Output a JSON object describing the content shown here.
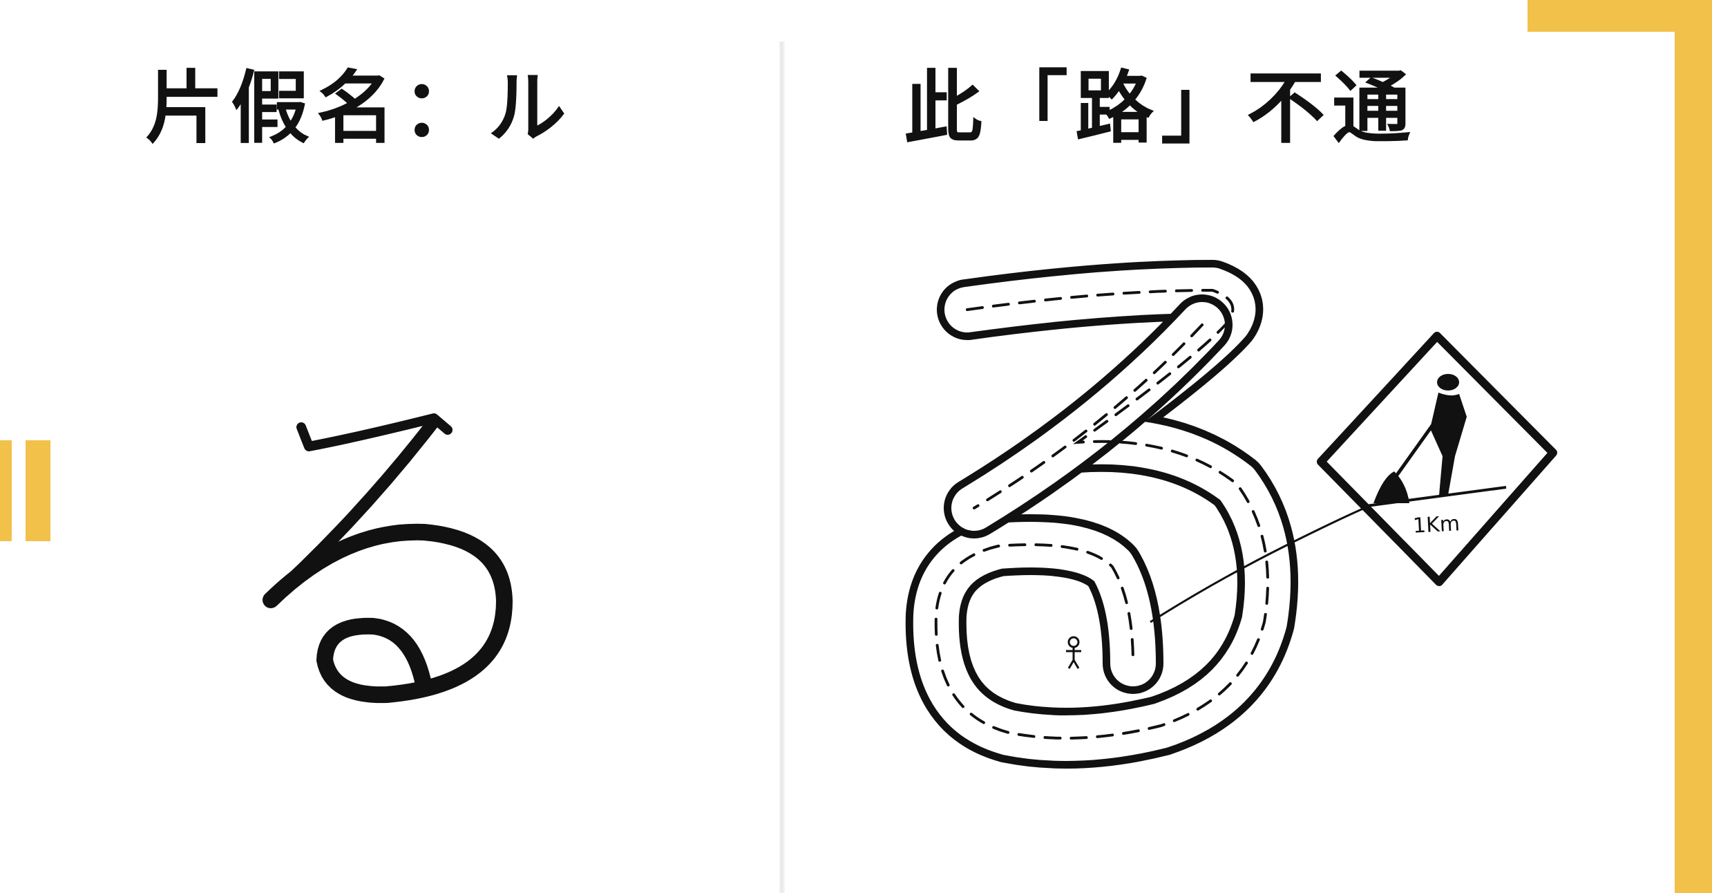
{
  "colors": {
    "accent": "#F2C14A",
    "ink": "#111111",
    "background": "#FFFFFF"
  },
  "left_panel": {
    "title": "片假名：ル",
    "character_glyph": "hiragana-ru-stroke"
  },
  "right_panel": {
    "title": "此「路」不通",
    "illustration": "ru-shaped-road-with-dashed-center-line",
    "sign": {
      "icon": "road-work-sign-icon",
      "text": "1Km"
    }
  }
}
